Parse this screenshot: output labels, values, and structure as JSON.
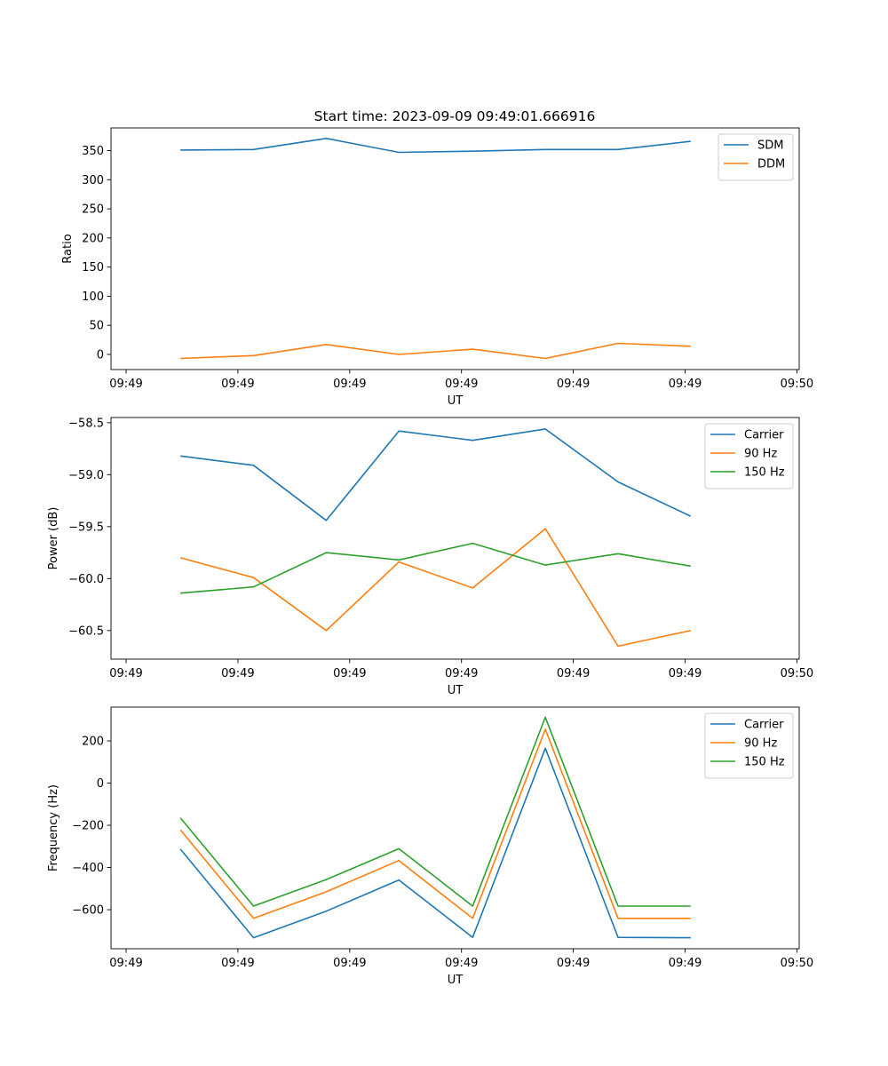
{
  "chart_data": [
    {
      "type": "line",
      "title": "Start time: 2023-09-09 09:49:01.666916",
      "xlabel": "UT",
      "ylabel": "Ratio",
      "x_tick_labels": [
        "09:49",
        "09:49",
        "09:49",
        "09:49",
        "09:49",
        "09:49",
        "09:50"
      ],
      "xlim": [
        0,
        6
      ],
      "ylim": [
        -26,
        389
      ],
      "yticks": [
        0,
        50,
        100,
        150,
        200,
        250,
        300,
        350
      ],
      "y_tick_labels": [
        "0",
        "50",
        "100",
        "150",
        "200",
        "250",
        "300",
        "350"
      ],
      "x": [
        0.486,
        1.14,
        1.79,
        2.44,
        3.1,
        3.75,
        4.4,
        5.05
      ],
      "legend": "top-right",
      "series": [
        {
          "name": "SDM",
          "color": "#1f77b4",
          "values": [
            351,
            352,
            371,
            347,
            349,
            352,
            352,
            366
          ]
        },
        {
          "name": "DDM",
          "color": "#ff7f0e",
          "values": [
            -7,
            -2,
            17,
            0,
            9,
            -7,
            19,
            14
          ]
        }
      ]
    },
    {
      "type": "line",
      "title": "",
      "xlabel": "UT",
      "ylabel": "Power (dB)",
      "x_tick_labels": [
        "09:49",
        "09:49",
        "09:49",
        "09:49",
        "09:49",
        "09:49",
        "09:50"
      ],
      "xlim": [
        0,
        6
      ],
      "ylim": [
        -60.775,
        -58.45
      ],
      "yticks": [
        -60.5,
        -60.0,
        -59.5,
        -59.0,
        -58.5
      ],
      "y_tick_labels": [
        "−60.5",
        "−60.0",
        "−59.5",
        "−59.0",
        "−58.5"
      ],
      "x": [
        0.486,
        1.14,
        1.79,
        2.44,
        3.1,
        3.75,
        4.4,
        5.05
      ],
      "legend": "top-right",
      "series": [
        {
          "name": "Carrier",
          "color": "#1f77b4",
          "values": [
            -58.82,
            -58.91,
            -59.44,
            -58.58,
            -58.67,
            -58.56,
            -59.07,
            -59.4
          ]
        },
        {
          "name": "90 Hz",
          "color": "#ff7f0e",
          "values": [
            -59.8,
            -59.99,
            -60.5,
            -59.84,
            -60.09,
            -59.52,
            -60.65,
            -60.5
          ]
        },
        {
          "name": "150 Hz",
          "color": "#2ca02c",
          "values": [
            -60.14,
            -60.08,
            -59.75,
            -59.82,
            -59.66,
            -59.87,
            -59.76,
            -59.88
          ]
        }
      ]
    },
    {
      "type": "line",
      "title": "",
      "xlabel": "UT",
      "ylabel": "Frequency (Hz)",
      "x_tick_labels": [
        "09:49",
        "09:49",
        "09:49",
        "09:49",
        "09:49",
        "09:49",
        "09:50"
      ],
      "xlim": [
        0,
        6
      ],
      "ylim": [
        -785,
        360
      ],
      "yticks": [
        -600,
        -400,
        -200,
        0,
        200
      ],
      "y_tick_labels": [
        "−600",
        "−400",
        "−200",
        "0",
        "200"
      ],
      "x": [
        0.486,
        1.14,
        1.79,
        2.44,
        3.1,
        3.75,
        4.4,
        5.05
      ],
      "legend": "top-right",
      "series": [
        {
          "name": "Carrier",
          "color": "#1f77b4",
          "values": [
            -313,
            -733,
            -607,
            -459,
            -731,
            165,
            -731,
            -733
          ]
        },
        {
          "name": "90 Hz",
          "color": "#ff7f0e",
          "values": [
            -222,
            -641,
            -515,
            -367,
            -641,
            255,
            -641,
            -641
          ]
        },
        {
          "name": "150 Hz",
          "color": "#2ca02c",
          "values": [
            -165,
            -583,
            -457,
            -311,
            -583,
            312,
            -583,
            -583
          ]
        }
      ]
    }
  ]
}
